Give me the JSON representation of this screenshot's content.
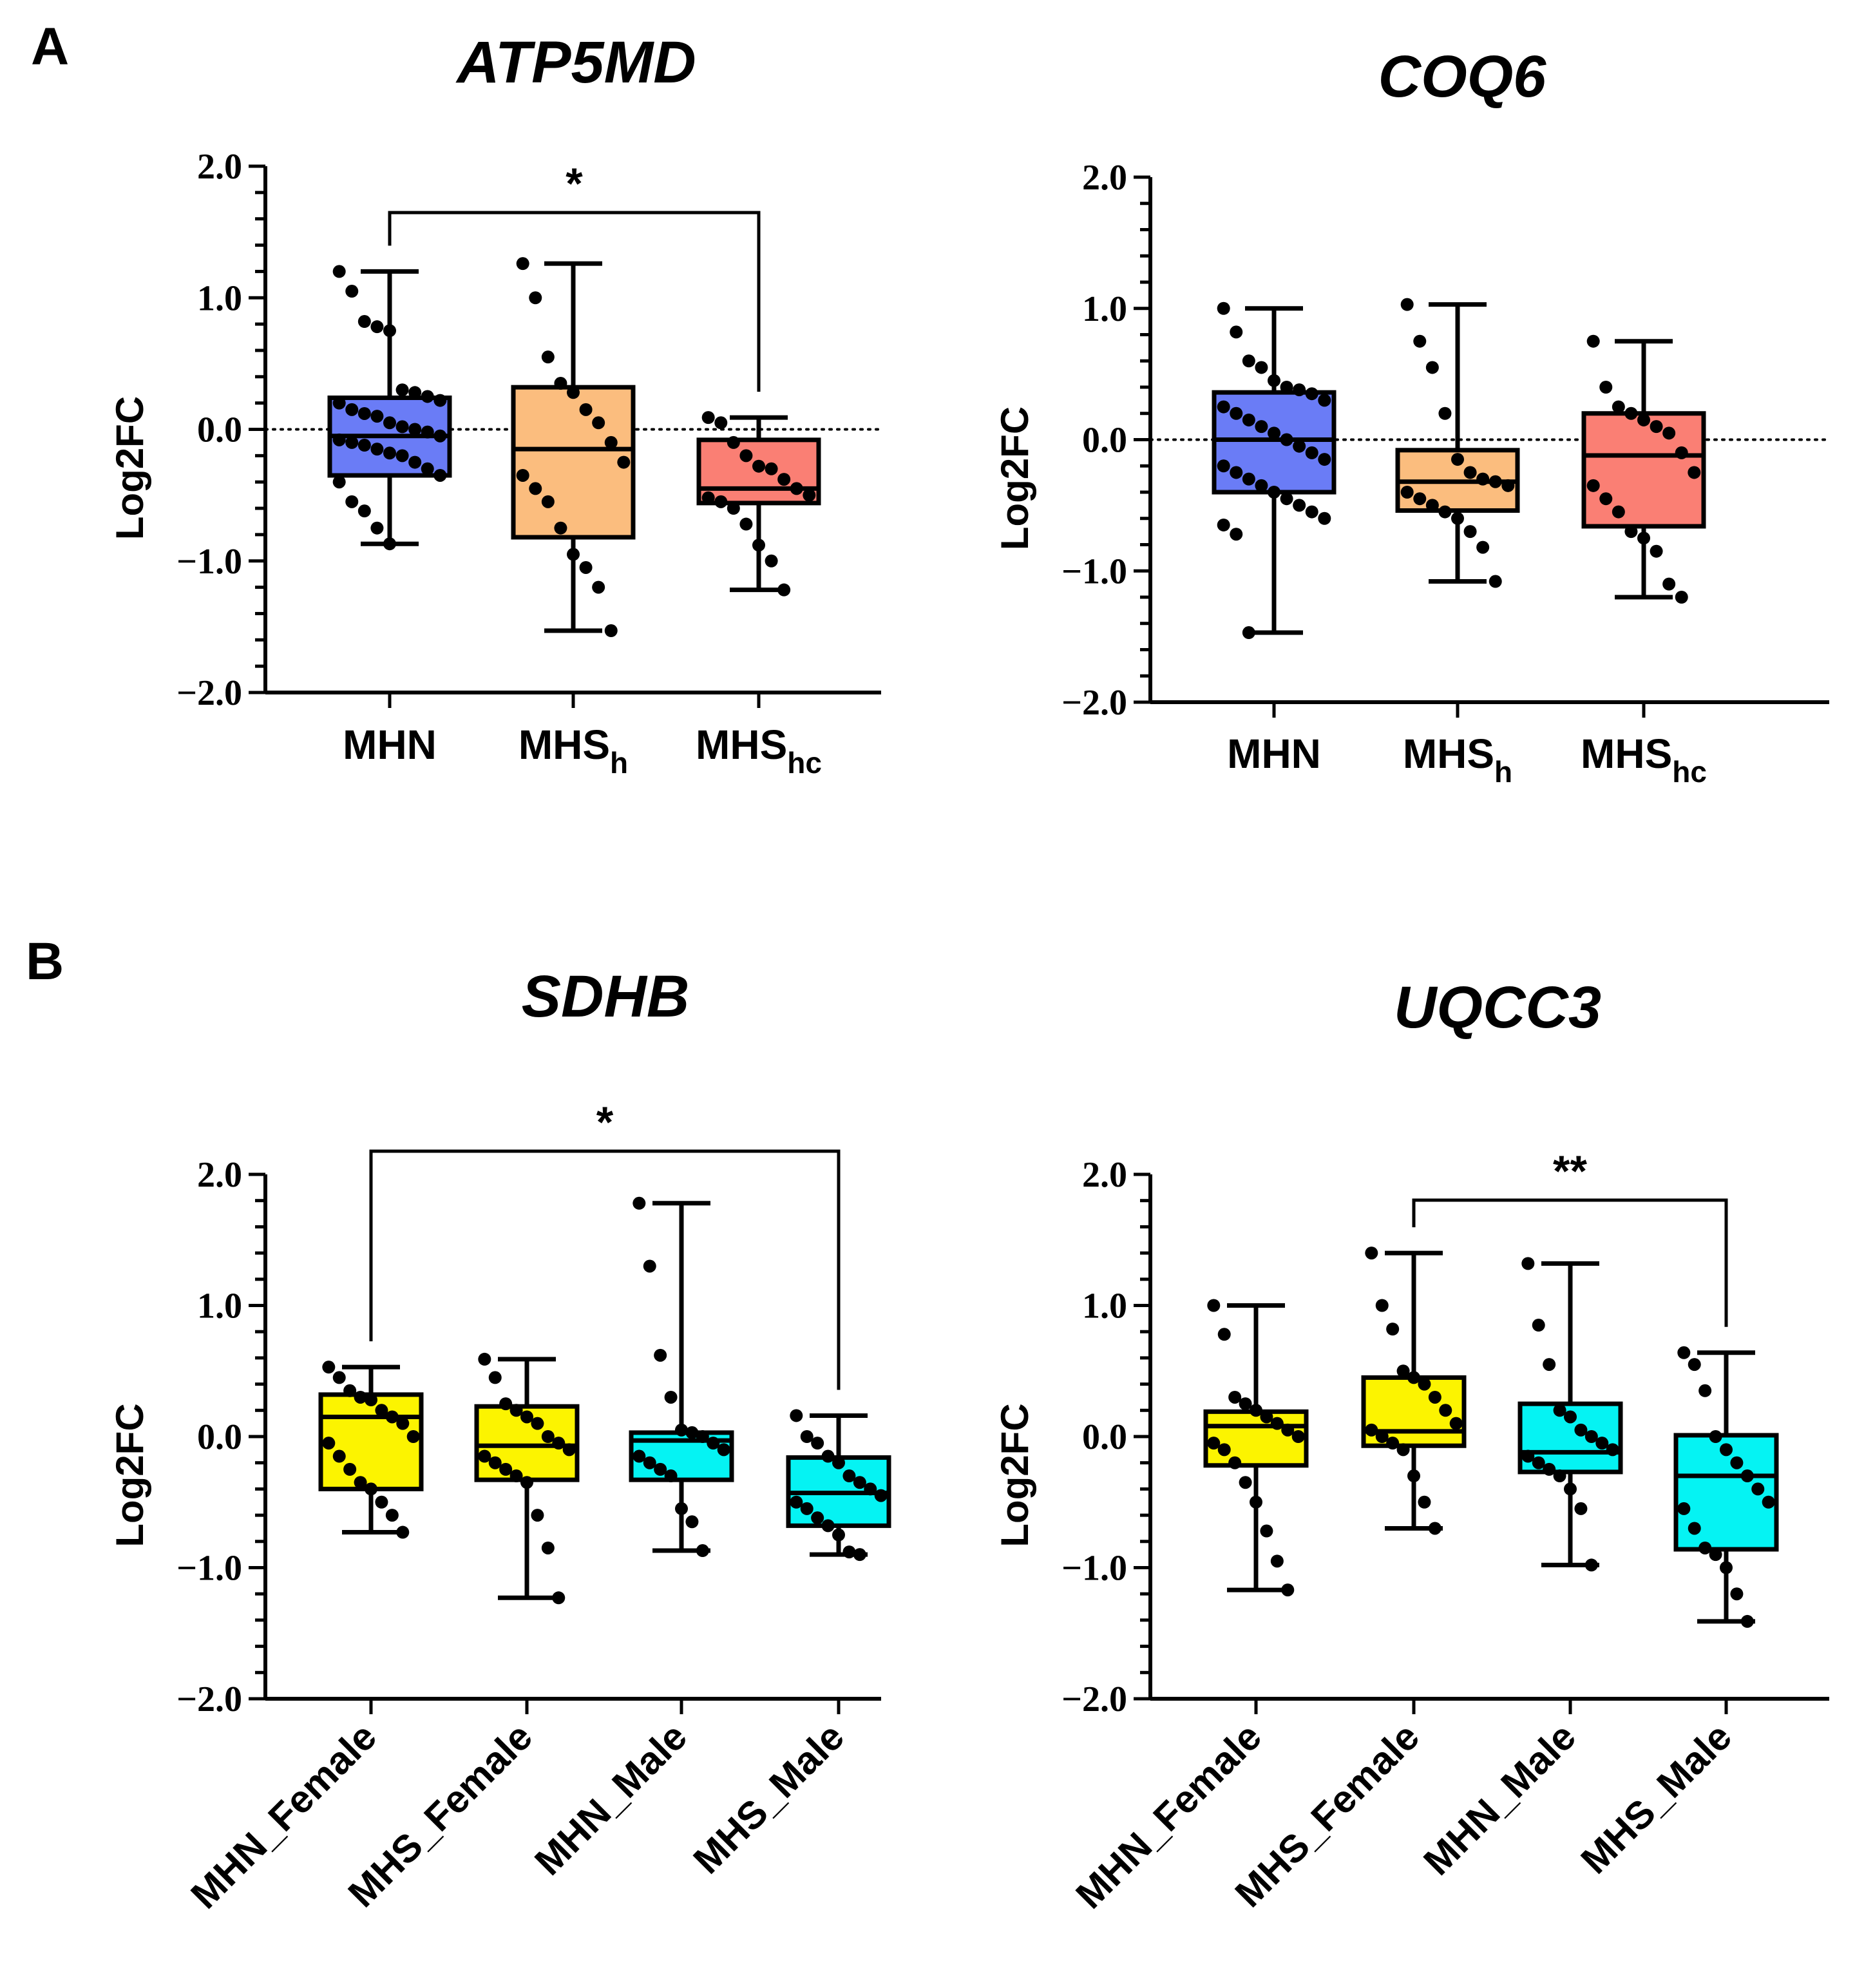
{
  "panel_labels": [
    "A",
    "B"
  ],
  "chart_data": [
    {
      "type": "box",
      "panel": "A",
      "title": "ATP5MD",
      "ylabel": "Log2FC",
      "ylim": [
        -2.0,
        2.0
      ],
      "yticks": [
        "2.0",
        "1.0",
        "0.0",
        "−1.0",
        "−2.0"
      ],
      "reference_line": 0,
      "categories": [
        {
          "main": "MHN",
          "sub": ""
        },
        {
          "main": "MHS",
          "sub": "h"
        },
        {
          "main": "MHS",
          "sub": "hc"
        }
      ],
      "colors": [
        "#6a7cf6",
        "#fbbd7e",
        "#fa7f74"
      ],
      "boxes": [
        {
          "min": -0.87,
          "q1": -0.35,
          "median": -0.05,
          "q3": 0.24,
          "max": 1.2
        },
        {
          "min": -1.53,
          "q1": -0.82,
          "median": -0.15,
          "q3": 0.32,
          "max": 1.26
        },
        {
          "min": -1.22,
          "q1": -0.56,
          "median": -0.45,
          "q3": -0.08,
          "max": 0.09
        }
      ],
      "points": [
        [
          1.2,
          1.05,
          0.82,
          0.78,
          0.75,
          0.3,
          0.28,
          0.25,
          0.22,
          0.2,
          0.15,
          0.12,
          0.1,
          0.05,
          0.02,
          0.0,
          -0.02,
          -0.05,
          -0.08,
          -0.1,
          -0.12,
          -0.15,
          -0.18,
          -0.2,
          -0.25,
          -0.3,
          -0.35,
          -0.4,
          -0.55,
          -0.62,
          -0.75,
          -0.87
        ],
        [
          1.26,
          1.0,
          0.55,
          0.35,
          0.28,
          0.15,
          0.05,
          -0.1,
          -0.25,
          -0.35,
          -0.45,
          -0.55,
          -0.75,
          -0.95,
          -1.05,
          -1.2,
          -1.53
        ],
        [
          0.09,
          0.05,
          -0.1,
          -0.2,
          -0.28,
          -0.3,
          -0.38,
          -0.45,
          -0.5,
          -0.52,
          -0.55,
          -0.6,
          -0.72,
          -0.88,
          -1.0,
          -1.22
        ]
      ],
      "significance": [
        {
          "from": 0,
          "to": 2,
          "label": "*"
        }
      ]
    },
    {
      "type": "box",
      "panel": "A",
      "title": "COQ6",
      "ylabel": "Log2FC",
      "ylim": [
        -2.0,
        2.0
      ],
      "yticks": [
        "2.0",
        "1.0",
        "0.0",
        "−1.0",
        "−2.0"
      ],
      "reference_line": 0,
      "categories": [
        {
          "main": "MHN",
          "sub": ""
        },
        {
          "main": "MHS",
          "sub": "h"
        },
        {
          "main": "MHS",
          "sub": "hc"
        }
      ],
      "colors": [
        "#6a7cf6",
        "#fbbd7e",
        "#fa7f74"
      ],
      "boxes": [
        {
          "min": -1.47,
          "q1": -0.4,
          "median": 0.0,
          "q3": 0.36,
          "max": 1.0
        },
        {
          "min": -1.08,
          "q1": -0.54,
          "median": -0.32,
          "q3": -0.08,
          "max": 1.03
        },
        {
          "min": -1.2,
          "q1": -0.66,
          "median": -0.12,
          "q3": 0.2,
          "max": 0.75
        }
      ],
      "points": [
        [
          1.0,
          0.82,
          0.6,
          0.55,
          0.45,
          0.4,
          0.38,
          0.35,
          0.3,
          0.25,
          0.2,
          0.15,
          0.1,
          0.05,
          0.0,
          -0.05,
          -0.1,
          -0.15,
          -0.2,
          -0.25,
          -0.3,
          -0.35,
          -0.4,
          -0.45,
          -0.5,
          -0.55,
          -0.6,
          -0.65,
          -0.72,
          -1.47
        ],
        [
          1.03,
          0.75,
          0.55,
          0.2,
          -0.15,
          -0.25,
          -0.3,
          -0.32,
          -0.35,
          -0.4,
          -0.45,
          -0.5,
          -0.55,
          -0.6,
          -0.7,
          -0.82,
          -1.08
        ],
        [
          0.75,
          0.4,
          0.25,
          0.2,
          0.15,
          0.1,
          0.05,
          -0.1,
          -0.25,
          -0.35,
          -0.45,
          -0.55,
          -0.7,
          -0.75,
          -0.85,
          -1.1,
          -1.2
        ]
      ],
      "significance": []
    },
    {
      "type": "box",
      "panel": "B",
      "title": "SDHB",
      "ylabel": "Log2FC",
      "ylim": [
        -2.0,
        2.0
      ],
      "yticks": [
        "2.0",
        "1.0",
        "0.0",
        "−1.0",
        "−2.0"
      ],
      "reference_line": null,
      "categories": [
        {
          "main": "MHN_Female",
          "sub": ""
        },
        {
          "main": "MHS_Female",
          "sub": ""
        },
        {
          "main": "MHN_Male",
          "sub": ""
        },
        {
          "main": "MHS_Male",
          "sub": ""
        }
      ],
      "colors": [
        "#fcf400",
        "#fcf400",
        "#05f3f3",
        "#05f3f3"
      ],
      "boxes": [
        {
          "min": -0.73,
          "q1": -0.4,
          "median": 0.15,
          "q3": 0.32,
          "max": 0.53
        },
        {
          "min": -1.23,
          "q1": -0.33,
          "median": -0.07,
          "q3": 0.23,
          "max": 0.59
        },
        {
          "min": -0.87,
          "q1": -0.33,
          "median": -0.03,
          "q3": 0.03,
          "max": 1.78
        },
        {
          "min": -0.9,
          "q1": -0.68,
          "median": -0.43,
          "q3": -0.16,
          "max": 0.16
        }
      ],
      "points": [
        [
          0.53,
          0.45,
          0.35,
          0.3,
          0.28,
          0.2,
          0.15,
          0.1,
          0.0,
          -0.05,
          -0.15,
          -0.25,
          -0.35,
          -0.4,
          -0.5,
          -0.6,
          -0.73
        ],
        [
          0.59,
          0.45,
          0.25,
          0.2,
          0.15,
          0.1,
          0.0,
          -0.05,
          -0.1,
          -0.15,
          -0.2,
          -0.25,
          -0.3,
          -0.35,
          -0.6,
          -0.85,
          -1.23
        ],
        [
          1.78,
          1.3,
          0.62,
          0.3,
          0.05,
          0.03,
          0.0,
          -0.05,
          -0.1,
          -0.15,
          -0.2,
          -0.25,
          -0.3,
          -0.55,
          -0.65,
          -0.87
        ],
        [
          0.16,
          0.0,
          -0.05,
          -0.15,
          -0.2,
          -0.3,
          -0.35,
          -0.4,
          -0.45,
          -0.5,
          -0.55,
          -0.62,
          -0.68,
          -0.75,
          -0.88,
          -0.9
        ]
      ],
      "significance": [
        {
          "from": 0,
          "to": 3,
          "label": "*"
        }
      ]
    },
    {
      "type": "box",
      "panel": "B",
      "title": "UQCC3",
      "ylabel": "Log2FC",
      "ylim": [
        -2.0,
        2.0
      ],
      "yticks": [
        "2.0",
        "1.0",
        "0.0",
        "−1.0",
        "−2.0"
      ],
      "reference_line": null,
      "categories": [
        {
          "main": "MHN_Female",
          "sub": ""
        },
        {
          "main": "MHS_Female",
          "sub": ""
        },
        {
          "main": "MHN_Male",
          "sub": ""
        },
        {
          "main": "MHS_Male",
          "sub": ""
        }
      ],
      "colors": [
        "#fcf400",
        "#fcf400",
        "#05f3f3",
        "#05f3f3"
      ],
      "boxes": [
        {
          "min": -1.17,
          "q1": -0.22,
          "median": 0.08,
          "q3": 0.19,
          "max": 1.0
        },
        {
          "min": -0.7,
          "q1": -0.07,
          "median": 0.04,
          "q3": 0.45,
          "max": 1.4
        },
        {
          "min": -0.98,
          "q1": -0.27,
          "median": -0.12,
          "q3": 0.25,
          "max": 1.32
        },
        {
          "min": -1.41,
          "q1": -0.86,
          "median": -0.3,
          "q3": 0.01,
          "max": 0.64
        }
      ],
      "points": [
        [
          1.0,
          0.78,
          0.3,
          0.25,
          0.2,
          0.15,
          0.1,
          0.05,
          0.0,
          -0.05,
          -0.1,
          -0.2,
          -0.35,
          -0.5,
          -0.72,
          -0.95,
          -1.17
        ],
        [
          1.4,
          1.0,
          0.82,
          0.5,
          0.45,
          0.4,
          0.3,
          0.2,
          0.1,
          0.05,
          0.0,
          -0.05,
          -0.1,
          -0.3,
          -0.5,
          -0.7
        ],
        [
          1.32,
          0.85,
          0.55,
          0.2,
          0.15,
          0.05,
          0.0,
          -0.05,
          -0.1,
          -0.15,
          -0.2,
          -0.25,
          -0.3,
          -0.4,
          -0.55,
          -0.98
        ],
        [
          0.64,
          0.55,
          0.35,
          0.0,
          -0.1,
          -0.2,
          -0.3,
          -0.4,
          -0.5,
          -0.55,
          -0.7,
          -0.85,
          -0.9,
          -1.0,
          -1.2,
          -1.41
        ]
      ],
      "significance": [
        {
          "from": 1,
          "to": 3,
          "label": "**"
        }
      ]
    }
  ]
}
